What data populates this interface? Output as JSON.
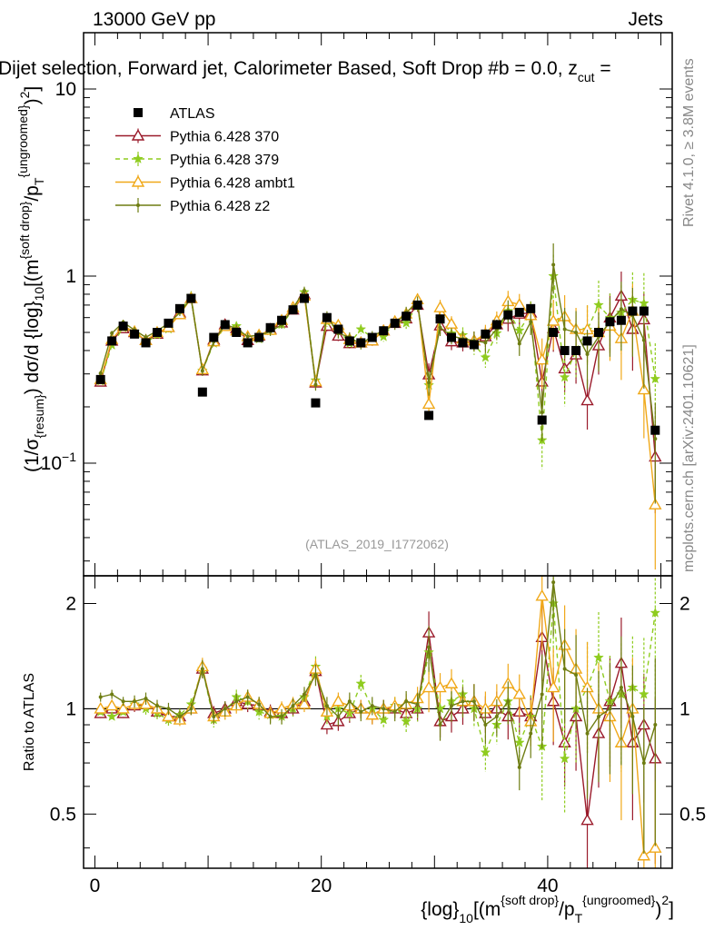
{
  "header": {
    "energy": "13000 GeV pp",
    "process": "Jets",
    "title": "Dijet selection, Forward jet, Calorimeter Based, Soft Drop #b = 0.0, z",
    "title_sub": "cut",
    "title_tail": " ="
  },
  "side_labels": {
    "rivet": "Rivet 4.1.0, ≥ 3.8M events",
    "site": "mcplots.cern.ch [arXiv:2401.10621]"
  },
  "citation": "(ATLAS_2019_I1772062)",
  "axis_labels": {
    "y_main": "(1/σ_{resum}) dσ/d {log}_10[(m^{soft drop}/p_T^{ungroomed})^2]",
    "y_ratio": "Ratio to ATLAS",
    "x": "{log}_10[(m^{soft drop}/p_T^{ungroomed})^2]"
  },
  "legend": [
    {
      "name": "ATLAS",
      "color": "#000000",
      "marker": "square"
    },
    {
      "name": "Pythia 6.428 370",
      "color": "#9a1a2a",
      "marker": "triangle-open"
    },
    {
      "name": "Pythia 6.428 379",
      "color": "#8fcc1f",
      "marker": "star"
    },
    {
      "name": "Pythia 6.428 ambt1",
      "color": "#f0a818",
      "marker": "triangle-open"
    },
    {
      "name": "Pythia 6.428 z2",
      "color": "#6e7d12",
      "marker": "dot"
    }
  ],
  "chart_data": {
    "type": "line",
    "x_range": [
      -1,
      51
    ],
    "main_y_range": [
      0.025,
      20
    ],
    "main_y_scale": "log",
    "main_y_ticks": [
      {
        "value": 0.1,
        "label": "10^{-1}"
      },
      {
        "value": 1,
        "label": "1"
      },
      {
        "value": 10,
        "label": "10"
      }
    ],
    "ratio_y_range": [
      0.35,
      2.4
    ],
    "ratio_y_scale": "log",
    "ratio_y_ticks": [
      {
        "value": 0.5,
        "label": "0.5"
      },
      {
        "value": 1,
        "label": "1"
      },
      {
        "value": 2,
        "label": "2"
      }
    ],
    "x_ticks": [
      {
        "value": 0,
        "label": "0"
      },
      {
        "value": 20,
        "label": "20"
      },
      {
        "value": 40,
        "label": "40"
      }
    ],
    "x": [
      0.5,
      1.5,
      2.5,
      3.5,
      4.5,
      5.5,
      6.5,
      7.5,
      8.5,
      9.5,
      10.5,
      11.5,
      12.5,
      13.5,
      14.5,
      15.5,
      16.5,
      17.5,
      18.5,
      19.5,
      20.5,
      21.5,
      22.5,
      23.5,
      24.5,
      25.5,
      26.5,
      27.5,
      28.5,
      29.5,
      30.5,
      31.5,
      32.5,
      33.5,
      34.5,
      35.5,
      36.5,
      37.5,
      38.5,
      39.5,
      40.5,
      41.5,
      42.5,
      43.5,
      44.5,
      45.5,
      46.5,
      47.5,
      48.5,
      49.5
    ],
    "data": {
      "name": "ATLAS",
      "values": [
        0.28,
        0.45,
        0.54,
        0.49,
        0.44,
        0.5,
        0.56,
        0.67,
        0.76,
        0.24,
        0.47,
        0.55,
        0.5,
        0.44,
        0.47,
        0.53,
        0.58,
        0.66,
        0.76,
        0.21,
        0.6,
        0.52,
        0.45,
        0.44,
        0.47,
        0.51,
        0.56,
        0.61,
        0.7,
        0.18,
        0.59,
        0.47,
        0.44,
        0.43,
        0.49,
        0.55,
        0.62,
        0.64,
        0.67,
        0.17,
        0.5,
        0.4,
        0.4,
        0.45,
        0.5,
        0.57,
        0.58,
        0.65,
        0.65,
        0.15
      ]
    },
    "series": [
      {
        "name": "Pythia 6.428 370",
        "ratio": [
          0.97,
          1.0,
          0.97,
          1.02,
          1.03,
          0.98,
          0.95,
          0.95,
          1.0,
          1.3,
          0.97,
          1.0,
          1.05,
          1.03,
          1.02,
          0.98,
          0.97,
          1.0,
          1.05,
          1.28,
          0.9,
          0.92,
          0.97,
          1.0,
          0.96,
          1.0,
          1.0,
          0.97,
          1.0,
          1.65,
          0.92,
          0.95,
          1.0,
          1.05,
          0.97,
          1.0,
          0.95,
          0.98,
          0.95,
          1.6,
          1.05,
          0.8,
          0.95,
          0.48,
          0.85,
          1.05,
          1.35,
          0.8,
          0.9,
          0.72
        ],
        "err": [
          0.03,
          0.03,
          0.03,
          0.04,
          0.04,
          0.04,
          0.04,
          0.04,
          0.04,
          0.06,
          0.05,
          0.05,
          0.05,
          0.05,
          0.05,
          0.05,
          0.05,
          0.05,
          0.05,
          0.07,
          0.06,
          0.06,
          0.06,
          0.06,
          0.06,
          0.06,
          0.06,
          0.07,
          0.08,
          0.15,
          0.1,
          0.1,
          0.1,
          0.12,
          0.12,
          0.12,
          0.14,
          0.14,
          0.15,
          0.25,
          0.25,
          0.25,
          0.3,
          0.3,
          0.3,
          0.35,
          0.35,
          0.4,
          0.4,
          0.5
        ]
      },
      {
        "name": "Pythia 6.428 379",
        "ratio": [
          0.98,
          0.95,
          0.98,
          1.03,
          1.0,
          0.97,
          0.93,
          0.96,
          1.03,
          1.3,
          0.93,
          0.98,
          1.08,
          1.05,
          0.98,
          0.96,
          0.95,
          1.0,
          1.08,
          1.32,
          0.95,
          1.0,
          0.97,
          1.18,
          1.0,
          0.93,
          1.02,
          0.92,
          1.0,
          1.45,
          1.0,
          1.05,
          1.1,
          1.0,
          0.75,
          0.9,
          1.05,
          0.8,
          0.95,
          0.78,
          2.0,
          0.72,
          1.0,
          1.15,
          1.4,
          1.05,
          1.1,
          1.15,
          1.1,
          1.88
        ],
        "err": [
          0.03,
          0.03,
          0.03,
          0.04,
          0.04,
          0.04,
          0.04,
          0.04,
          0.04,
          0.06,
          0.05,
          0.05,
          0.05,
          0.05,
          0.05,
          0.05,
          0.05,
          0.05,
          0.05,
          0.07,
          0.06,
          0.06,
          0.06,
          0.06,
          0.06,
          0.06,
          0.06,
          0.07,
          0.08,
          0.15,
          0.1,
          0.1,
          0.1,
          0.12,
          0.12,
          0.12,
          0.14,
          0.14,
          0.15,
          0.3,
          0.3,
          0.3,
          0.3,
          0.35,
          0.35,
          0.35,
          0.4,
          0.4,
          0.45,
          0.55
        ]
      },
      {
        "name": "Pythia 6.428 ambt1",
        "ratio": [
          1.0,
          1.02,
          1.0,
          1.03,
          1.03,
          1.0,
          0.95,
          0.93,
          1.0,
          1.32,
          0.95,
          0.98,
          1.02,
          1.08,
          1.03,
          0.97,
          1.0,
          1.03,
          1.03,
          1.3,
          0.98,
          1.05,
          1.02,
          1.0,
          0.96,
          1.0,
          1.02,
          1.03,
          1.07,
          1.15,
          1.15,
          1.18,
          1.05,
          1.05,
          1.0,
          1.05,
          1.18,
          1.1,
          0.92,
          2.1,
          1.15,
          1.52,
          1.3,
          1.15,
          1.0,
          0.95,
          0.8,
          1.0,
          0.38,
          0.4
        ],
        "err": [
          0.03,
          0.03,
          0.03,
          0.04,
          0.04,
          0.04,
          0.04,
          0.04,
          0.04,
          0.06,
          0.05,
          0.05,
          0.05,
          0.05,
          0.05,
          0.05,
          0.05,
          0.05,
          0.05,
          0.07,
          0.06,
          0.06,
          0.06,
          0.06,
          0.06,
          0.06,
          0.06,
          0.07,
          0.08,
          0.15,
          0.1,
          0.1,
          0.1,
          0.12,
          0.12,
          0.12,
          0.14,
          0.14,
          0.15,
          0.3,
          0.3,
          0.3,
          0.3,
          0.35,
          0.35,
          0.35,
          0.4,
          0.4,
          0.45,
          0.55
        ]
      },
      {
        "name": "Pythia 6.428 z2",
        "ratio": [
          1.08,
          1.1,
          1.05,
          1.05,
          1.07,
          1.02,
          1.0,
          0.95,
          1.0,
          1.3,
          0.95,
          1.0,
          1.05,
          1.08,
          1.03,
          0.95,
          0.95,
          1.02,
          1.1,
          1.25,
          1.02,
          0.95,
          1.05,
          0.98,
          1.02,
          1.0,
          0.98,
          1.05,
          1.03,
          1.5,
          0.9,
          1.02,
          1.05,
          1.05,
          0.9,
          0.95,
          1.05,
          0.68,
          0.85,
          1.1,
          2.3,
          1.3,
          1.25,
          0.85,
          0.95,
          1.0,
          1.15,
          0.95,
          0.7,
          0.9
        ],
        "err": [
          0.03,
          0.03,
          0.03,
          0.04,
          0.04,
          0.04,
          0.04,
          0.04,
          0.04,
          0.06,
          0.05,
          0.05,
          0.05,
          0.05,
          0.05,
          0.05,
          0.05,
          0.05,
          0.05,
          0.07,
          0.06,
          0.06,
          0.06,
          0.06,
          0.06,
          0.06,
          0.06,
          0.07,
          0.08,
          0.15,
          0.1,
          0.1,
          0.1,
          0.12,
          0.12,
          0.12,
          0.14,
          0.14,
          0.15,
          0.3,
          0.3,
          0.3,
          0.3,
          0.35,
          0.35,
          0.35,
          0.4,
          0.4,
          0.45,
          0.55
        ]
      }
    ]
  }
}
